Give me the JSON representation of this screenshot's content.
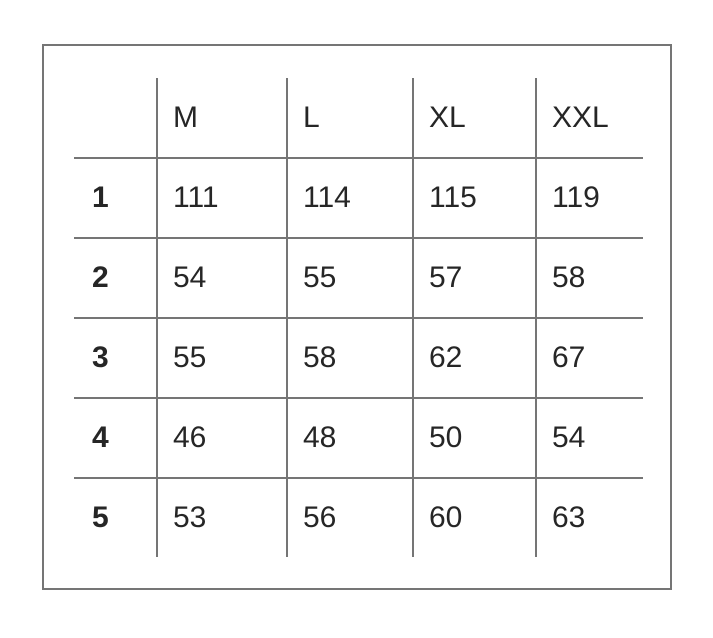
{
  "chart_data": {
    "type": "table",
    "title": "",
    "column_headers": [
      "M",
      "L",
      "XL",
      "XXL"
    ],
    "row_headers": [
      "1",
      "2",
      "3",
      "4",
      "5"
    ],
    "rows": [
      [
        111,
        114,
        115,
        119
      ],
      [
        54,
        55,
        57,
        58
      ],
      [
        55,
        58,
        62,
        67
      ],
      [
        46,
        48,
        50,
        54
      ],
      [
        53,
        56,
        60,
        63
      ]
    ]
  },
  "colors": {
    "line": "#757575",
    "text": "#262626",
    "background": "#ffffff"
  }
}
